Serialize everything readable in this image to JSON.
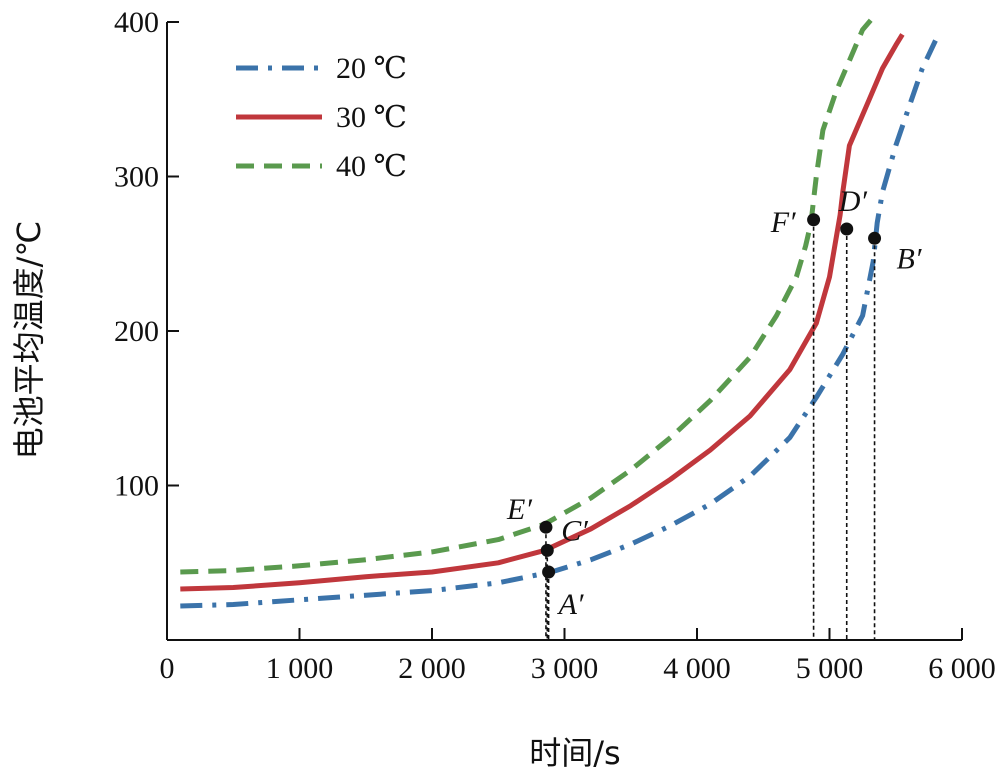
{
  "chart_data": {
    "type": "line",
    "xlabel": "时间/s",
    "ylabel": "电池平均温度/℃",
    "xlim": [
      0,
      6000
    ],
    "ylim": [
      0,
      400
    ],
    "x_ticks": [
      0,
      1000,
      2000,
      3000,
      4000,
      5000,
      6000
    ],
    "x_tick_labels": [
      "0",
      "1 000",
      "2 000",
      "3 000",
      "4 000",
      "5 000",
      "6 000"
    ],
    "y_ticks": [
      100,
      200,
      300,
      400
    ],
    "y_tick_labels": [
      "100",
      "200",
      "300",
      "400"
    ],
    "grid": false,
    "legend_position": "top-left",
    "series": [
      {
        "name": "20 ℃",
        "color": "#3b73aa",
        "style": "dash-dot",
        "x": [
          100,
          500,
          1000,
          1500,
          2000,
          2500,
          2900,
          3200,
          3500,
          3800,
          4100,
          4400,
          4700,
          4900,
          5100,
          5250,
          5330,
          5360,
          5400,
          5500,
          5600,
          5700,
          5800
        ],
        "y": [
          22,
          23,
          26,
          29,
          32,
          37,
          44,
          52,
          62,
          74,
          88,
          106,
          131,
          157,
          185,
          210,
          245,
          270,
          290,
          320,
          345,
          370,
          388
        ]
      },
      {
        "name": "30 ℃",
        "color": "#c0373c",
        "style": "solid",
        "x": [
          100,
          500,
          1000,
          1500,
          2000,
          2500,
          2850,
          3200,
          3500,
          3800,
          4100,
          4400,
          4700,
          4900,
          5000,
          5050,
          5080,
          5100,
          5150,
          5300,
          5400,
          5500,
          5550
        ],
        "y": [
          33,
          34,
          37,
          41,
          44,
          50,
          58,
          72,
          87,
          104,
          123,
          145,
          175,
          205,
          235,
          260,
          275,
          290,
          320,
          350,
          370,
          385,
          392
        ]
      },
      {
        "name": "40 ℃",
        "color": "#5a9a4e",
        "style": "dashed",
        "x": [
          100,
          500,
          1000,
          1500,
          2000,
          2500,
          2850,
          3200,
          3500,
          3800,
          4100,
          4400,
          4600,
          4750,
          4820,
          4860,
          4880,
          4900,
          4950,
          5050,
          5150,
          5250,
          5320
        ],
        "y": [
          44,
          45,
          48,
          52,
          57,
          65,
          75,
          92,
          110,
          131,
          155,
          183,
          210,
          235,
          255,
          270,
          285,
          300,
          330,
          355,
          375,
          395,
          402
        ]
      }
    ],
    "points": [
      {
        "label": "A′",
        "x": 2880,
        "y": 44
      },
      {
        "label": "B′",
        "x": 5340,
        "y": 260
      },
      {
        "label": "C′",
        "x": 2870,
        "y": 58
      },
      {
        "label": "D′",
        "x": 5130,
        "y": 266
      },
      {
        "label": "E′",
        "x": 2860,
        "y": 73
      },
      {
        "label": "F′",
        "x": 4880,
        "y": 272
      }
    ]
  }
}
